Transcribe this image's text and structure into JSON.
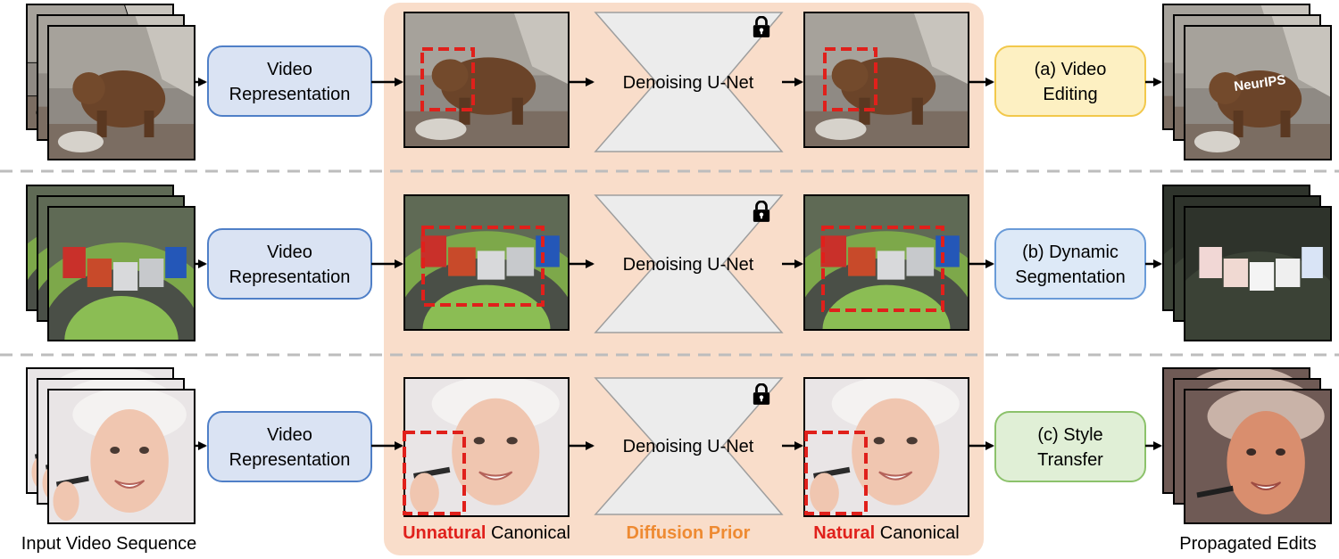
{
  "rows": [
    {
      "id": "a",
      "representation_label": [
        "Video",
        "Representation"
      ],
      "unet_label": "Denoising U-Net",
      "task_label": [
        "(a) Video",
        "Editing"
      ],
      "task_color": {
        "fill": "#fdf0c2",
        "stroke": "#f2c84b"
      },
      "output_overlay_text": "NeurIPS",
      "scene": "bear"
    },
    {
      "id": "b",
      "representation_label": [
        "Video",
        "Representation"
      ],
      "unet_label": "Denoising U-Net",
      "task_label": [
        "(b) Dynamic",
        "Segmentation"
      ],
      "task_color": {
        "fill": "#dde9f7",
        "stroke": "#6a9bd8"
      },
      "scene": "train"
    },
    {
      "id": "c",
      "representation_label": [
        "Video",
        "Representation"
      ],
      "unet_label": "Denoising U-Net",
      "task_label": [
        "(c) Style",
        "Transfer"
      ],
      "task_color": {
        "fill": "#e0efd6",
        "stroke": "#8cc26b"
      },
      "scene": "face"
    }
  ],
  "captions": {
    "input": "Input Video Sequence",
    "unnatural_highlight": "Unnatural",
    "unnatural_rest": " Canonical",
    "prior": "Diffusion Prior",
    "natural_highlight": "Natural",
    "natural_rest": " Canonical",
    "output": "Propagated Edits"
  },
  "colors": {
    "representation_fill": "#dae3f3",
    "representation_stroke": "#4f7fc7",
    "prior_panel": "#f9ddca",
    "unet_fill": "#ececec",
    "highlight_red": "#e0201b",
    "prior_orange": "#ee8a32",
    "divider": "#bdbdbd"
  },
  "icons": [
    "lock-icon",
    "arrow-icon"
  ]
}
